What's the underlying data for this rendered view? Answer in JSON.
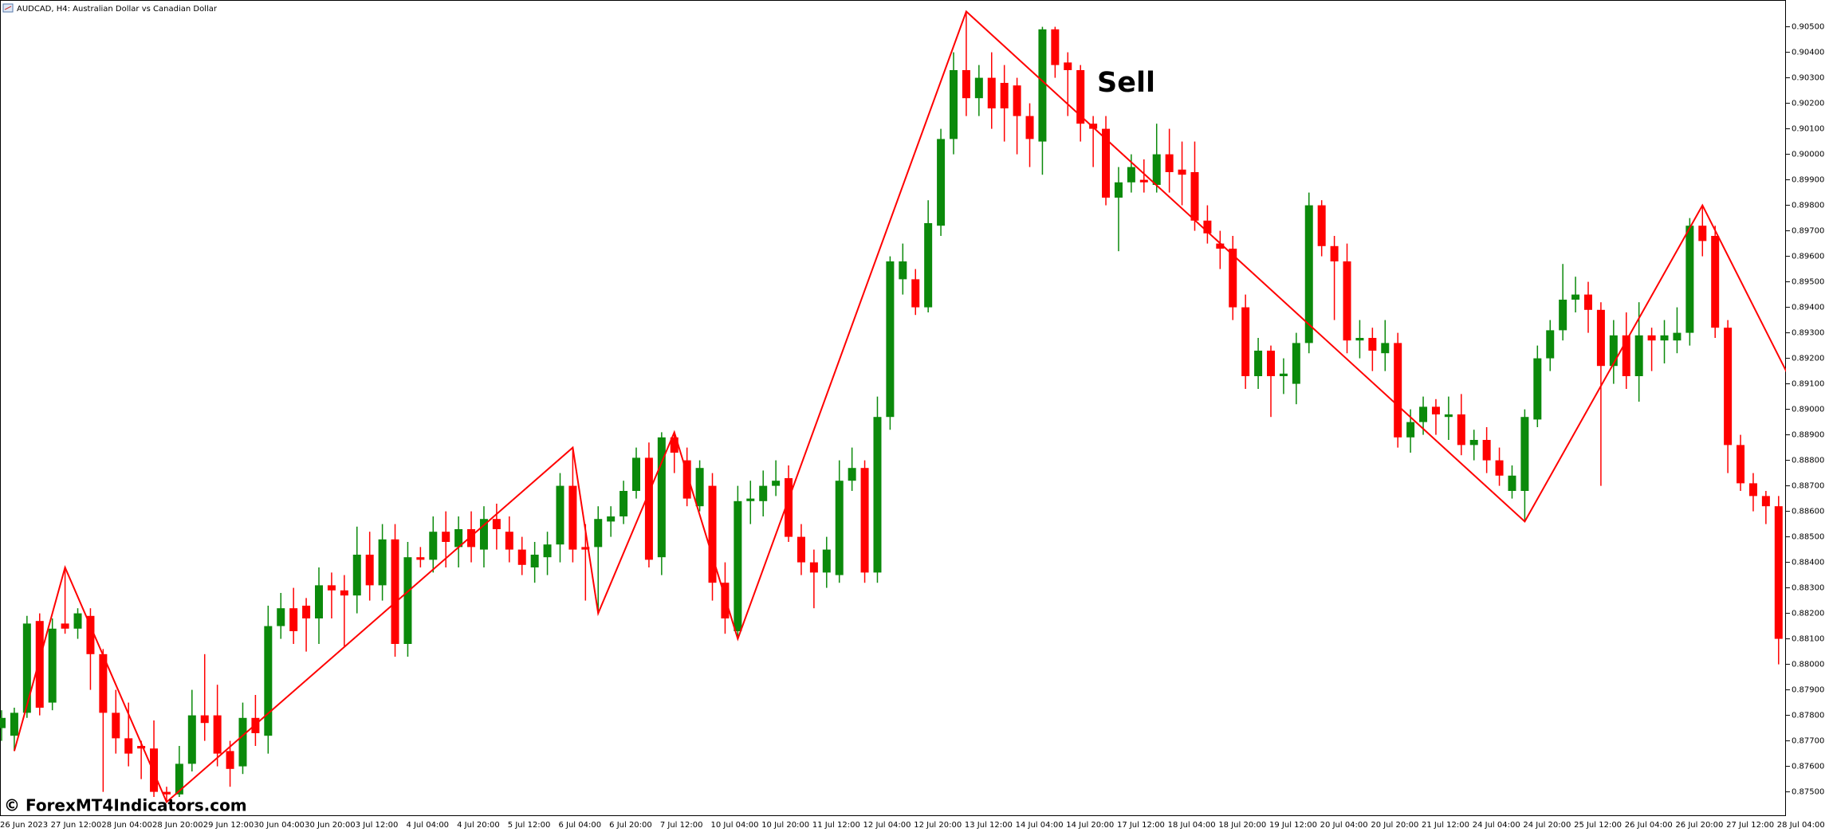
{
  "chart_data": {
    "type": "candlestick",
    "title": "AUDCAD, H4: Australian Dollar vs Canadian Dollar",
    "annotation": "Sell",
    "watermark": "© ForexMT4Indicators.com",
    "up_color": "#0b8a0b",
    "down_color": "#ff0000",
    "categories": [
      "26 Jun 2023",
      null,
      null,
      null,
      "27 Jun 12:00",
      null,
      null,
      null,
      "28 Jun 04:00",
      null,
      null,
      null,
      "28 Jun 20:00",
      null,
      null,
      null,
      "29 Jun 12:00",
      null,
      null,
      null,
      "30 Jun 04:00",
      null,
      null,
      null,
      "30 Jun 20:00",
      null,
      null,
      null,
      "3 Jul 12:00",
      null,
      null,
      null,
      "4 Jul 04:00",
      null,
      null,
      null,
      "4 Jul 20:00",
      null,
      null,
      null,
      "5 Jul 12:00",
      null,
      null,
      null,
      "6 Jul 04:00",
      null,
      null,
      null,
      "6 Jul 20:00",
      null,
      null,
      null,
      "7 Jul 12:00",
      null,
      null,
      null,
      "10 Jul 04:00",
      null,
      null,
      null,
      "10 Jul 20:00",
      null,
      null,
      null,
      "11 Jul 12:00",
      null,
      null,
      null,
      "12 Jul 04:00",
      null,
      null,
      null,
      "12 Jul 20:00",
      null,
      null,
      null,
      "13 Jul 12:00",
      null,
      null,
      null,
      "14 Jul 04:00",
      null,
      null,
      null,
      "14 Jul 20:00",
      null,
      null,
      null,
      "17 Jul 12:00",
      null,
      null,
      null,
      "18 Jul 04:00",
      null,
      null,
      null,
      "18 Jul 20:00",
      null,
      null,
      null,
      "19 Jul 12:00",
      null,
      null,
      null,
      "20 Jul 04:00",
      null,
      null,
      null,
      "20 Jul 20:00",
      null,
      null,
      null,
      "21 Jul 12:00",
      null,
      null,
      null,
      "24 Jul 04:00",
      null,
      null,
      null,
      "24 Jul 20:00",
      null,
      null,
      null,
      "25 Jul 12:00",
      null,
      null,
      null,
      "26 Jul 04:00",
      null,
      null,
      null,
      "26 Jul 20:00",
      null,
      null,
      null,
      "27 Jul 12:00",
      null,
      null,
      null,
      "28 Jul 04:00"
    ],
    "open": [
      0.8775,
      0.8772,
      0.8781,
      0.8817,
      0.8785,
      0.8816,
      0.8814,
      0.8819,
      0.8804,
      0.8781,
      0.8771,
      0.8768,
      0.8767,
      0.875,
      0.8749,
      0.8761,
      0.878,
      0.878,
      0.8766,
      0.876,
      0.8779,
      0.8772,
      0.8815,
      0.8822,
      0.8823,
      0.8818,
      0.8831,
      0.8829,
      0.8827,
      0.8843,
      0.8831,
      0.8849,
      0.8808,
      0.8842,
      0.8841,
      0.8852,
      0.8846,
      0.8853,
      0.8845,
      0.8857,
      0.8852,
      0.8845,
      0.8838,
      0.8842,
      0.8847,
      0.887,
      0.8846,
      0.8846,
      0.8856,
      0.8858,
      0.8868,
      0.8881,
      0.8842,
      0.8889,
      0.888,
      0.8862,
      0.887,
      0.8832,
      0.8813,
      0.8864,
      0.8864,
      0.887,
      0.8873,
      0.885,
      0.884,
      0.8836,
      0.8835,
      0.8872,
      0.8877,
      0.8836,
      0.8897,
      0.8951,
      0.8951,
      0.894,
      0.8972,
      0.9006,
      0.9033,
      0.9022,
      0.903,
      0.9028,
      0.9027,
      0.9015,
      0.9005,
      0.9049,
      0.9036,
      0.9033,
      0.9012,
      0.901,
      0.8983,
      0.8989,
      0.899,
      0.8988,
      0.9,
      0.8994,
      0.8993,
      0.8974,
      0.8965,
      0.8963,
      0.894,
      0.8913,
      0.8923,
      0.8913,
      0.891,
      0.8926,
      0.898,
      0.8964,
      0.8958,
      0.8927,
      0.8928,
      0.8922,
      0.8926,
      0.8889,
      0.8895,
      0.8901,
      0.8897,
      0.8898,
      0.8886,
      0.8888,
      0.888,
      0.8868,
      0.8868,
      0.8896,
      0.892,
      0.8931,
      0.8943,
      0.8945,
      0.8939,
      0.8917,
      0.8929,
      0.8913,
      0.8929,
      0.8927,
      0.8927,
      0.893,
      0.8972,
      0.8968,
      0.8932,
      0.8886,
      0.8871,
      0.8866,
      0.8862
    ],
    "high": [
      0.8782,
      0.8783,
      0.8819,
      0.882,
      0.8818,
      0.8838,
      0.8822,
      0.8822,
      0.8806,
      0.879,
      0.8785,
      0.877,
      0.8778,
      0.8752,
      0.8768,
      0.879,
      0.8804,
      0.8792,
      0.877,
      0.8785,
      0.8788,
      0.8823,
      0.8828,
      0.883,
      0.8826,
      0.8838,
      0.8836,
      0.8835,
      0.8854,
      0.8852,
      0.8855,
      0.8855,
      0.8848,
      0.8846,
      0.8858,
      0.886,
      0.8858,
      0.886,
      0.8862,
      0.8863,
      0.8858,
      0.885,
      0.8848,
      0.8852,
      0.8875,
      0.8885,
      0.8855,
      0.8862,
      0.8862,
      0.8872,
      0.8885,
      0.8887,
      0.8891,
      0.8891,
      0.8885,
      0.888,
      0.8875,
      0.884,
      0.887,
      0.8872,
      0.8876,
      0.888,
      0.8878,
      0.8855,
      0.8845,
      0.885,
      0.888,
      0.8885,
      0.888,
      0.8905,
      0.896,
      0.8965,
      0.8955,
      0.8982,
      0.901,
      0.904,
      0.9056,
      0.9035,
      0.904,
      0.9035,
      0.903,
      0.902,
      0.905,
      0.905,
      0.904,
      0.9035,
      0.9015,
      0.9015,
      0.8995,
      0.9,
      0.8998,
      0.9012,
      0.901,
      0.9005,
      0.9005,
      0.898,
      0.897,
      0.8968,
      0.8945,
      0.8928,
      0.8925,
      0.892,
      0.893,
      0.8985,
      0.8982,
      0.8968,
      0.8965,
      0.8935,
      0.8932,
      0.8935,
      0.893,
      0.89,
      0.8905,
      0.8904,
      0.8905,
      0.8906,
      0.8892,
      0.8893,
      0.8885,
      0.8878,
      0.89,
      0.8925,
      0.8935,
      0.8957,
      0.8952,
      0.895,
      0.8942,
      0.8935,
      0.8938,
      0.8942,
      0.8932,
      0.8935,
      0.894,
      0.8975,
      0.898,
      0.8972,
      0.8935,
      0.889,
      0.8875,
      0.8868,
      0.8866
    ],
    "low": [
      0.877,
      0.8766,
      0.8779,
      0.878,
      0.8782,
      0.8812,
      0.881,
      0.879,
      0.875,
      0.8765,
      0.876,
      0.8755,
      0.8748,
      0.8746,
      0.8748,
      0.8758,
      0.877,
      0.876,
      0.8752,
      0.8757,
      0.8768,
      0.8765,
      0.881,
      0.8808,
      0.8805,
      0.8808,
      0.8818,
      0.8807,
      0.882,
      0.8825,
      0.8825,
      0.8803,
      0.8803,
      0.8838,
      0.8836,
      0.8838,
      0.8838,
      0.884,
      0.8838,
      0.8845,
      0.884,
      0.8835,
      0.8832,
      0.8835,
      0.884,
      0.884,
      0.8825,
      0.882,
      0.885,
      0.8855,
      0.8865,
      0.8838,
      0.8835,
      0.8875,
      0.8862,
      0.886,
      0.8825,
      0.8812,
      0.881,
      0.8855,
      0.8858,
      0.8866,
      0.8848,
      0.8835,
      0.8822,
      0.883,
      0.8832,
      0.8868,
      0.8832,
      0.8832,
      0.8892,
      0.8945,
      0.8937,
      0.8938,
      0.8968,
      0.9,
      0.9015,
      0.9015,
      0.901,
      0.9005,
      0.9,
      0.8995,
      0.8992,
      0.903,
      0.9015,
      0.9005,
      0.8995,
      0.898,
      0.8962,
      0.8985,
      0.8985,
      0.8985,
      0.8985,
      0.898,
      0.897,
      0.8965,
      0.8955,
      0.8935,
      0.8908,
      0.8908,
      0.8897,
      0.8906,
      0.8902,
      0.8922,
      0.896,
      0.8935,
      0.8922,
      0.892,
      0.8915,
      0.8915,
      0.8885,
      0.8883,
      0.889,
      0.889,
      0.8888,
      0.8882,
      0.888,
      0.8875,
      0.887,
      0.8865,
      0.8856,
      0.8893,
      0.8915,
      0.8927,
      0.8938,
      0.893,
      0.887,
      0.891,
      0.8908,
      0.8903,
      0.8915,
      0.8918,
      0.8922,
      0.8925,
      0.896,
      0.8928,
      0.8875,
      0.8868,
      0.886,
      0.8855,
      0.88
    ],
    "close": [
      0.8779,
      0.8781,
      0.8816,
      0.8783,
      0.8814,
      0.8814,
      0.882,
      0.8804,
      0.8781,
      0.8771,
      0.8765,
      0.8767,
      0.875,
      0.8749,
      0.8761,
      0.878,
      0.8777,
      0.8765,
      0.8759,
      0.8779,
      0.8773,
      0.8815,
      0.8822,
      0.8813,
      0.8818,
      0.8831,
      0.8829,
      0.8827,
      0.8843,
      0.8831,
      0.8849,
      0.8808,
      0.8842,
      0.8841,
      0.8852,
      0.8848,
      0.8853,
      0.8846,
      0.8857,
      0.8853,
      0.8845,
      0.8839,
      0.8843,
      0.8847,
      0.887,
      0.8845,
      0.8845,
      0.8857,
      0.8858,
      0.8868,
      0.8881,
      0.8841,
      0.8889,
      0.8883,
      0.8865,
      0.8877,
      0.8832,
      0.8818,
      0.8864,
      0.8865,
      0.887,
      0.8872,
      0.885,
      0.884,
      0.8836,
      0.8845,
      0.8872,
      0.8877,
      0.8836,
      0.8897,
      0.8958,
      0.8958,
      0.894,
      0.8973,
      0.9006,
      0.9033,
      0.9022,
      0.903,
      0.9018,
      0.9018,
      0.9015,
      0.9006,
      0.9049,
      0.9035,
      0.9033,
      0.9012,
      0.901,
      0.8983,
      0.8989,
      0.8995,
      0.8989,
      0.9,
      0.8993,
      0.8992,
      0.8974,
      0.8969,
      0.8963,
      0.894,
      0.8913,
      0.8923,
      0.8913,
      0.8914,
      0.8926,
      0.898,
      0.8964,
      0.8958,
      0.8927,
      0.8928,
      0.8923,
      0.8926,
      0.8889,
      0.8895,
      0.8901,
      0.8898,
      0.8898,
      0.8886,
      0.8888,
      0.888,
      0.8874,
      0.8874,
      0.8897,
      0.892,
      0.8931,
      0.8943,
      0.8945,
      0.8939,
      0.8917,
      0.8929,
      0.8913,
      0.8929,
      0.8927,
      0.8929,
      0.893,
      0.8972,
      0.8966,
      0.8932,
      0.8886,
      0.8871,
      0.8866,
      0.8862,
      0.881
    ],
    "zigzag": {
      "color": "#ff0000",
      "x": [
        1,
        5,
        13,
        45,
        47,
        53,
        58,
        76,
        120,
        134,
        141
      ],
      "values": [
        0.8766,
        0.8838,
        0.8746,
        0.8885,
        0.882,
        0.8891,
        0.881,
        0.9056,
        0.8856,
        0.898,
        0.8911
      ]
    },
    "ylim": [
      0.87405,
      0.90605
    ],
    "yticks": [
      {
        "value": 0.875,
        "label": "0.87500"
      },
      {
        "value": 0.876,
        "label": "0.87600"
      },
      {
        "value": 0.877,
        "label": "0.87700"
      },
      {
        "value": 0.878,
        "label": "0.87800"
      },
      {
        "value": 0.879,
        "label": "0.87900"
      },
      {
        "value": 0.88,
        "label": "0.88000"
      },
      {
        "value": 0.881,
        "label": "0.88100"
      },
      {
        "value": 0.882,
        "label": "0.88200"
      },
      {
        "value": 0.883,
        "label": "0.88300"
      },
      {
        "value": 0.884,
        "label": "0.88400"
      },
      {
        "value": 0.885,
        "label": "0.88500"
      },
      {
        "value": 0.886,
        "label": "0.88600"
      },
      {
        "value": 0.887,
        "label": "0.88700"
      },
      {
        "value": 0.888,
        "label": "0.88800"
      },
      {
        "value": 0.889,
        "label": "0.88900"
      },
      {
        "value": 0.89,
        "label": "0.89000"
      },
      {
        "value": 0.891,
        "label": "0.89100"
      },
      {
        "value": 0.892,
        "label": "0.89200"
      },
      {
        "value": 0.893,
        "label": "0.89300"
      },
      {
        "value": 0.894,
        "label": "0.89400"
      },
      {
        "value": 0.895,
        "label": "0.89500"
      },
      {
        "value": 0.896,
        "label": "0.89600"
      },
      {
        "value": 0.897,
        "label": "0.89700"
      },
      {
        "value": 0.898,
        "label": "0.89800"
      },
      {
        "value": 0.899,
        "label": "0.89900"
      },
      {
        "value": 0.9,
        "label": "0.90000"
      },
      {
        "value": 0.901,
        "label": "0.90100"
      },
      {
        "value": 0.902,
        "label": "0.90200"
      },
      {
        "value": 0.903,
        "label": "0.90300"
      },
      {
        "value": 0.904,
        "label": "0.90400"
      },
      {
        "value": 0.905,
        "label": "0.90500"
      }
    ],
    "grid": false
  }
}
